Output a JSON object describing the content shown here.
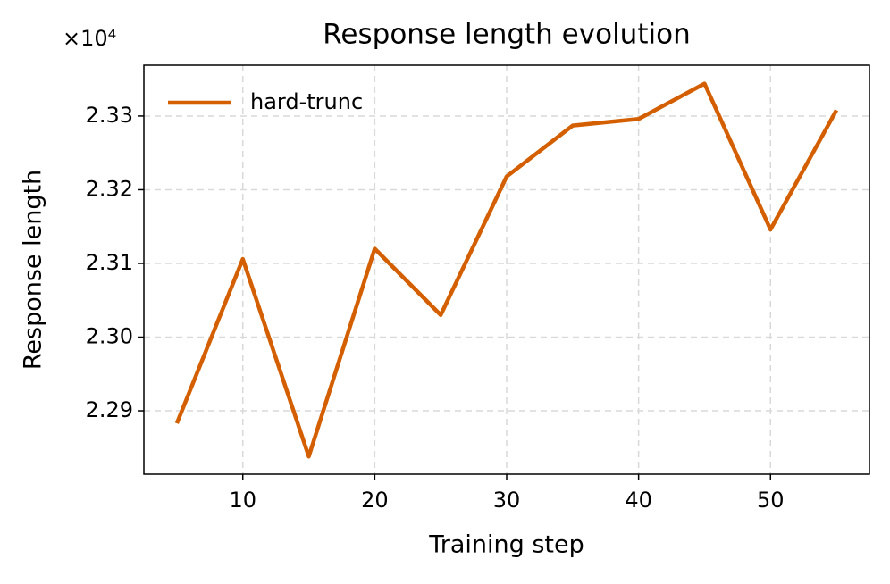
{
  "chart_data": {
    "type": "line",
    "title": "Response length evolution",
    "x_label": "Training step",
    "y_label": "Response length",
    "y_offset_label": "×10⁴",
    "x": [
      5,
      10,
      15,
      20,
      25,
      30,
      35,
      40,
      45,
      50,
      55
    ],
    "series": [
      {
        "name": "hard-trunc",
        "color": "#d45f00",
        "values": [
          2.2883,
          2.3106,
          2.2838,
          2.312,
          2.303,
          2.3218,
          2.3287,
          2.3296,
          2.3344,
          2.3146,
          2.3308
        ]
      }
    ],
    "xlim": [
      2.5,
      57.5
    ],
    "xticks": [
      10,
      20,
      30,
      40,
      50
    ],
    "ylim": [
      2.2814,
      2.3369
    ],
    "yticks": [
      {
        "value": 2.29,
        "label": "2.29"
      },
      {
        "value": 2.3,
        "label": "2.30"
      },
      {
        "value": 2.31,
        "label": "2.31"
      },
      {
        "value": 2.32,
        "label": "2.32"
      },
      {
        "value": 2.33,
        "label": "2.33"
      }
    ],
    "grid": true,
    "legend": "upper left"
  }
}
